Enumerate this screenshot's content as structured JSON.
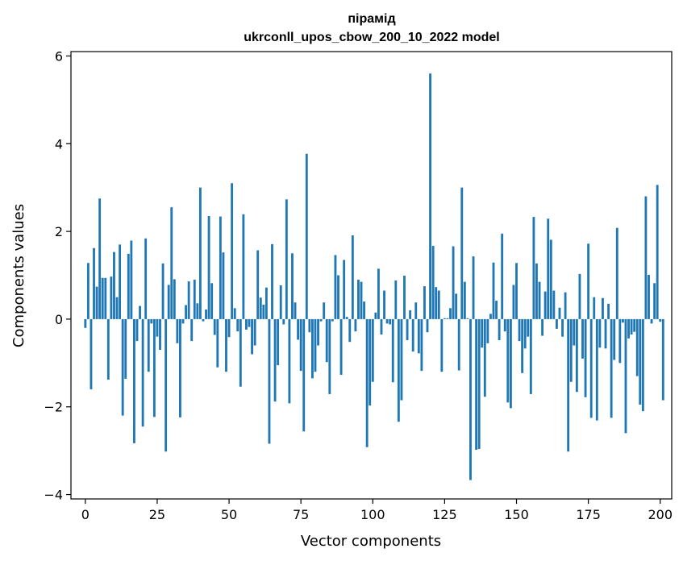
{
  "chart_data": {
    "type": "bar",
    "title_line1": "пірамід",
    "title_line2": "ukrconll_upos_cbow_200_10_2022 model",
    "xlabel": "Vector components",
    "ylabel": "Components values",
    "xlim": [
      -5,
      204
    ],
    "ylim": [
      -4.1,
      6.1
    ],
    "x_ticks": [
      0,
      25,
      50,
      75,
      100,
      125,
      150,
      175,
      200
    ],
    "y_ticks": [
      -4,
      -2,
      0,
      2,
      4,
      6
    ],
    "x_tick_labels": [
      "0",
      "25",
      "50",
      "75",
      "100",
      "125",
      "150",
      "175",
      "200"
    ],
    "y_tick_labels": [
      "−4",
      "−2",
      "0",
      "2",
      "4",
      "6"
    ],
    "bar_color": "#1f77b4",
    "grid": false,
    "values": [
      -0.2,
      1.28,
      -1.6,
      1.62,
      0.74,
      2.75,
      0.94,
      0.94,
      -1.38,
      0.97,
      1.53,
      0.5,
      1.7,
      -2.2,
      -1.36,
      1.49,
      1.79,
      -2.83,
      -0.5,
      0.3,
      -2.45,
      1.84,
      -1.2,
      -0.1,
      -2.23,
      -0.4,
      -0.7,
      1.27,
      -3.02,
      0.78,
      2.55,
      0.91,
      -0.55,
      -2.24,
      -0.1,
      0.32,
      0.86,
      -0.5,
      0.9,
      0.36,
      3.0,
      -0.05,
      0.22,
      2.35,
      0.82,
      -0.36,
      -1.1,
      2.34,
      1.52,
      -1.2,
      -0.41,
      3.1,
      0.25,
      -0.28,
      -1.54,
      2.39,
      -0.24,
      -0.18,
      -0.8,
      -0.6,
      1.57,
      0.49,
      0.33,
      0.72,
      -2.84,
      1.71,
      -1.88,
      -1.05,
      0.77,
      -0.12,
      2.73,
      -1.92,
      1.5,
      0.38,
      -0.47,
      -1.18,
      -2.56,
      3.77,
      -0.3,
      -1.35,
      -1.2,
      -0.6,
      -0.05,
      0.38,
      -0.98,
      -1.71,
      -0.05,
      1.46,
      1.0,
      -1.27,
      1.35,
      0.05,
      -0.52,
      1.91,
      -0.28,
      0.9,
      0.85,
      0.4,
      -2.92,
      -1.97,
      -1.43,
      0.15,
      1.15,
      -0.35,
      0.65,
      -0.1,
      -0.12,
      -1.44,
      0.88,
      -2.34,
      -1.85,
      0.99,
      -0.48,
      0.2,
      -0.74,
      0.38,
      -0.78,
      -1.18,
      0.75,
      -0.3,
      5.6,
      1.67,
      0.73,
      0.65,
      -1.2,
      0.02,
      0.02,
      0.25,
      1.66,
      0.58,
      -1.17,
      3.0,
      0.85,
      0.02,
      -3.67,
      1.43,
      -2.98,
      -2.96,
      -0.65,
      -1.77,
      -0.55,
      0.12,
      1.29,
      0.42,
      -0.48,
      1.95,
      -0.28,
      -1.9,
      -2.03,
      0.78,
      1.28,
      -0.5,
      -1.23,
      -0.67,
      -0.4,
      -1.71,
      2.33,
      1.27,
      0.85,
      -0.38,
      0.63,
      2.29,
      1.81,
      0.65,
      -0.22,
      0.26,
      -0.4,
      0.61,
      -3.02,
      -1.43,
      -0.6,
      -1.66,
      1.03,
      -0.9,
      -1.78,
      1.72,
      -2.25,
      0.5,
      -2.31,
      -0.65,
      0.48,
      -0.67,
      0.35,
      -2.25,
      -0.93,
      2.08,
      -1.0,
      -0.08,
      -2.6,
      -0.44,
      -0.35,
      -0.29,
      -1.3,
      -1.95,
      -2.1,
      2.8,
      1.01,
      -0.1,
      0.82,
      3.06,
      -0.06,
      -1.85
    ]
  }
}
